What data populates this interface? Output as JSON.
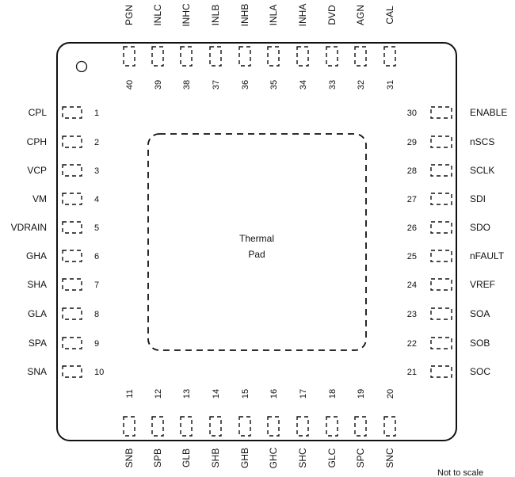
{
  "pins": {
    "left": [
      [
        "1",
        "CPL"
      ],
      [
        "2",
        "CPH"
      ],
      [
        "3",
        "VCP"
      ],
      [
        "4",
        "VM"
      ],
      [
        "5",
        "VDRAIN"
      ],
      [
        "6",
        "GHA"
      ],
      [
        "7",
        "SHA"
      ],
      [
        "8",
        "GLA"
      ],
      [
        "9",
        "SPA"
      ],
      [
        "10",
        "SNA"
      ]
    ],
    "bottom": [
      [
        "11",
        "SNB"
      ],
      [
        "12",
        "SPB"
      ],
      [
        "13",
        "GLB"
      ],
      [
        "14",
        "SHB"
      ],
      [
        "15",
        "GHB"
      ],
      [
        "16",
        "GHC"
      ],
      [
        "17",
        "SHC"
      ],
      [
        "18",
        "GLC"
      ],
      [
        "19",
        "SPC"
      ],
      [
        "20",
        "SNC"
      ]
    ],
    "right": [
      [
        "21",
        "SOC"
      ],
      [
        "22",
        "SOB"
      ],
      [
        "23",
        "SOA"
      ],
      [
        "24",
        "VREF"
      ],
      [
        "25",
        "nFAULT"
      ],
      [
        "26",
        "SDO"
      ],
      [
        "27",
        "SDI"
      ],
      [
        "28",
        "SCLK"
      ],
      [
        "29",
        "nSCS"
      ],
      [
        "30",
        "ENABLE"
      ]
    ],
    "top": [
      [
        "31",
        "CAL"
      ],
      [
        "32",
        "AGN"
      ],
      [
        "33",
        "DVD"
      ],
      [
        "34",
        "INHA"
      ],
      [
        "35",
        "INLA"
      ],
      [
        "36",
        "INHB"
      ],
      [
        "37",
        "INLB"
      ],
      [
        "38",
        "INHC"
      ],
      [
        "39",
        "INLC"
      ],
      [
        "40",
        "PGN"
      ]
    ]
  },
  "thermal_pad": {
    "line1": "Thermal",
    "line2": "Pad"
  },
  "note": "Not to scale"
}
